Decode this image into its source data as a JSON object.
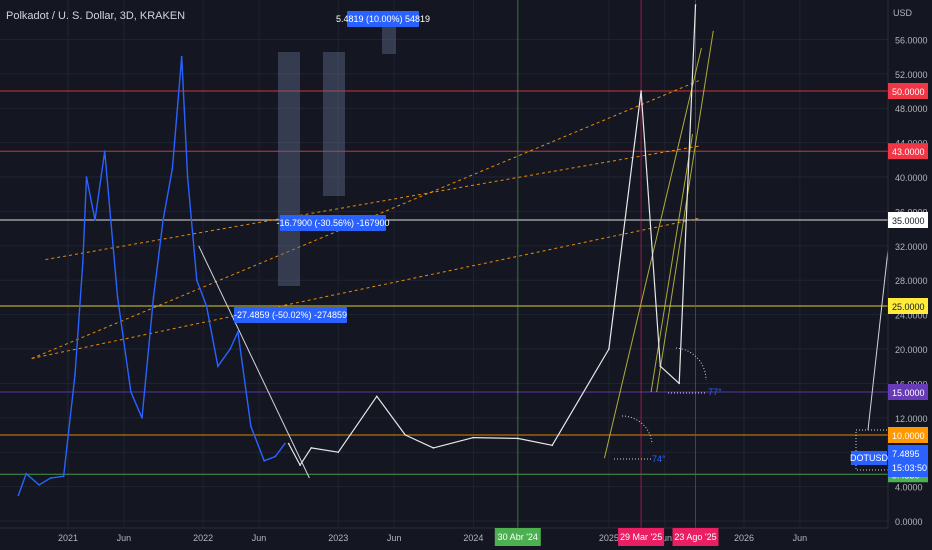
{
  "title": "Polkadot / U. S. Dollar, 3D, KRAKEN",
  "axis": {
    "currency": "USD",
    "y_ticks": [
      "56.0000",
      "52.0000",
      "48.0000",
      "44.0000",
      "40.0000",
      "36.0000",
      "32.0000",
      "28.0000",
      "24.0000",
      "20.0000",
      "16.0000",
      "12.0000",
      "8.0000",
      "4.0000",
      "0.0000"
    ],
    "x_ticks": [
      "2021",
      "Jun",
      "2022",
      "Jun",
      "2023",
      "Jun",
      "2024",
      "2025",
      "Jun",
      "2026",
      "Jun"
    ]
  },
  "colors": {
    "background": "#141722",
    "price_line": "#2962ff",
    "projection": "#e8e8e8",
    "red_level": "#f23645",
    "orange_level": "#ff9800",
    "yellow_level": "#ffeb3b",
    "white_level": "#ffffff",
    "purple_level": "#673ab7",
    "green_level": "#4caf50",
    "trend_dashed": "#ff9800",
    "angle_lines": "#c9c63b",
    "ruler_box": "#5d6b8a",
    "badge_blue": "#2962ff",
    "vline_green": "#4caf50",
    "vline_pink": "#e91e63"
  },
  "chart_data": {
    "type": "line",
    "symbol": "DOTUSD",
    "interval": "3D",
    "ylim": [
      0,
      58
    ],
    "y_scale": "linear",
    "grid": true,
    "series": [
      {
        "name": "DOTUSD",
        "x": [
          "2020-08-20",
          "2020-09-10",
          "2020-10-15",
          "2020-11-15",
          "2020-12-20",
          "2021-01-20",
          "2021-02-10",
          "2021-02-20",
          "2021-03-15",
          "2021-04-10",
          "2021-05-15",
          "2021-06-20",
          "2021-07-20",
          "2021-08-20",
          "2021-09-15",
          "2021-10-10",
          "2021-11-04",
          "2021-11-20",
          "2021-12-15",
          "2022-01-10",
          "2022-02-10",
          "2022-03-15",
          "2022-04-05",
          "2022-05-10",
          "2022-06-15",
          "2022-07-15",
          "2022-08-10"
        ],
        "values": [
          3.0,
          5.5,
          4.2,
          5.0,
          5.2,
          17.0,
          30.0,
          40.0,
          35.0,
          43.0,
          26.0,
          15.0,
          12.0,
          26.0,
          35.0,
          41.0,
          54.0,
          40.0,
          28.0,
          25.0,
          18.0,
          20.0,
          22.0,
          11.0,
          7.0,
          7.5,
          9.0
        ]
      }
    ],
    "projection": {
      "x": [
        "2022-08-20",
        "2022-09-20",
        "2022-10-20",
        "2023-01-01",
        "2023-04-15",
        "2023-07-01",
        "2023-09-15",
        "2024-01-01",
        "2024-04-30",
        "2024-08-01",
        "2025-01-01",
        "2025-03-29",
        "2025-05-20",
        "2025-07-10",
        "2025-08-23"
      ],
      "values": [
        9.0,
        6.5,
        8.5,
        8.0,
        14.5,
        10.0,
        8.5,
        9.7,
        9.6,
        8.8,
        20.0,
        50.0,
        18.0,
        16.0,
        60.0
      ]
    },
    "horizontal_levels": [
      {
        "value": 50.0,
        "label": "50.0000",
        "color": "#f23645"
      },
      {
        "value": 43.0,
        "label": "43.0000",
        "color": "#f23645"
      },
      {
        "value": 35.0,
        "label": "35.0000",
        "color": "#ffffff"
      },
      {
        "value": 25.0,
        "label": "25.0000",
        "color": "#ffeb3b"
      },
      {
        "value": 15.0,
        "label": "15.0000",
        "color": "#673ab7"
      },
      {
        "value": 10.0,
        "label": "10.0000",
        "color": "#ff9800"
      },
      {
        "value": 5.435,
        "label": "5.4350",
        "color": "#4caf50"
      }
    ],
    "current_price": {
      "label": "DOTUSD",
      "value": "7.4895",
      "countdown": "15:03:50"
    },
    "vertical_markers": [
      {
        "date": "2024-04-30",
        "label": "30 Abr '24",
        "color": "#4caf50"
      },
      {
        "date": "2025-03-29",
        "label": "29 Mar '25",
        "color": "#e91e63"
      },
      {
        "date": "2025-08-23",
        "label": "23 Ago '25",
        "color": "#e91e63"
      }
    ],
    "measurements": [
      {
        "label": "5.4819 (10.00%) 54819",
        "from_value": 54.8,
        "to_value": 60.3
      },
      {
        "label": "-16.7900 (-30.56%) -167900",
        "from_value": 54.8,
        "to_value": 38.0
      },
      {
        "label": "-27.4859 (-50.02%) -274859",
        "from_value": 54.8,
        "to_value": 27.3
      }
    ],
    "angle_labels": [
      "74°",
      "77°"
    ]
  }
}
